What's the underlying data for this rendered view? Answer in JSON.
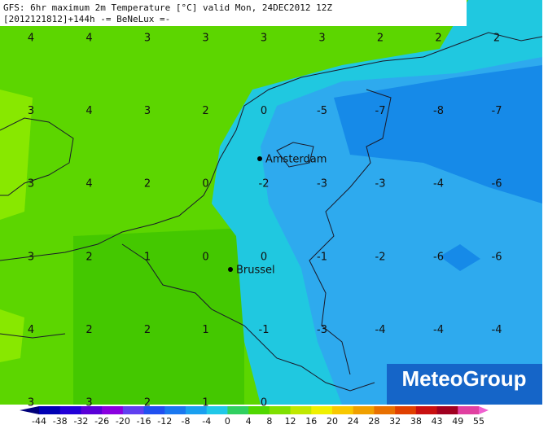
{
  "header": {
    "title": "GFS: 6hr maximum 2m Temperature [°C] valid Mon, 24DEC2012 12Z",
    "subtitle": "[2012121812]+144h -= BeNeLux =-"
  },
  "grid": {
    "rows": [
      [
        4,
        4,
        3,
        3,
        3,
        3,
        2,
        2,
        2
      ],
      [
        3,
        4,
        3,
        2,
        0,
        -5,
        -7,
        -8,
        -7
      ],
      [
        3,
        4,
        2,
        0,
        -2,
        -3,
        -3,
        -4,
        -6
      ],
      [
        3,
        2,
        1,
        0,
        0,
        -1,
        -2,
        -6,
        -6
      ],
      [
        4,
        2,
        2,
        1,
        -1,
        -3,
        -4,
        -4,
        -4
      ],
      [
        3,
        3,
        2,
        1,
        0
      ]
    ]
  },
  "cities": [
    {
      "name": "Amsterdam"
    },
    {
      "name": "Brussel"
    }
  ],
  "colorbar": {
    "labels": [
      -44,
      -38,
      -32,
      -26,
      -20,
      -16,
      -12,
      -8,
      -4,
      0,
      4,
      8,
      12,
      16,
      20,
      24,
      28,
      32,
      38,
      43,
      49,
      55
    ],
    "colors": [
      "#00007a",
      "#0000b4",
      "#2200d8",
      "#5a00d8",
      "#8a00e0",
      "#6040f0",
      "#2050f0",
      "#1a78f0",
      "#1aa0f0",
      "#20c8e8",
      "#30d060",
      "#50d800",
      "#80e000",
      "#c0e800",
      "#f0f000",
      "#f8c800",
      "#f0a000",
      "#e87000",
      "#e04000",
      "#c81010",
      "#a00020",
      "#e040a0",
      "#f060d0"
    ]
  },
  "logo": "MeteoGroup"
}
